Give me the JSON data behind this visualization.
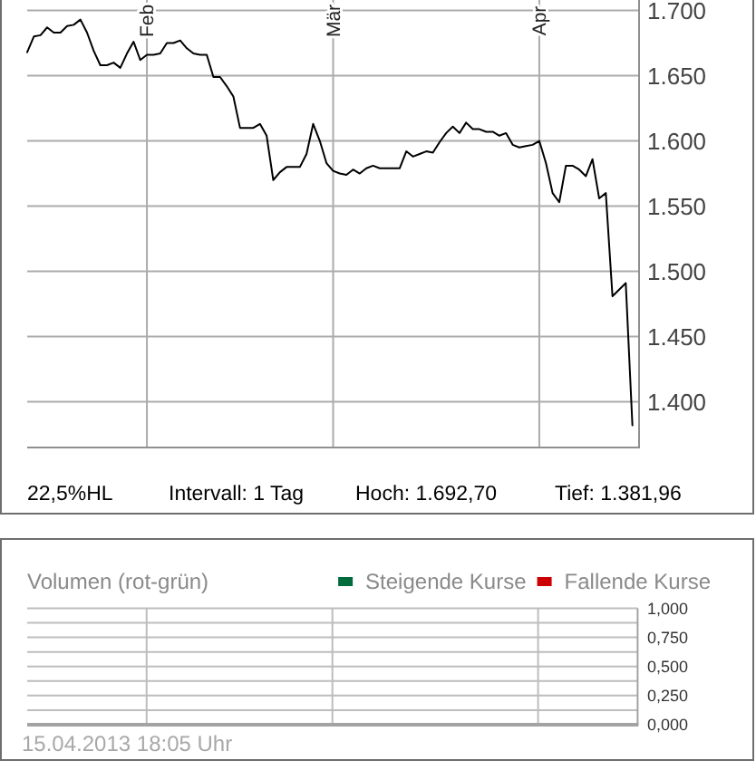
{
  "chart_data": [
    {
      "type": "line",
      "color": "#000000",
      "x": [
        "2013-01-14",
        "2013-01-15",
        "2013-01-16",
        "2013-01-17",
        "2013-01-18",
        "2013-01-19",
        "2013-01-20",
        "2013-01-21",
        "2013-01-22",
        "2013-01-23",
        "2013-01-24",
        "2013-01-25",
        "2013-01-26",
        "2013-01-27",
        "2013-01-28",
        "2013-01-29",
        "2013-01-30",
        "2013-01-31",
        "2013-02-01",
        "2013-02-02",
        "2013-02-03",
        "2013-02-04",
        "2013-02-05",
        "2013-02-06",
        "2013-02-07",
        "2013-02-08",
        "2013-02-09",
        "2013-02-10",
        "2013-02-11",
        "2013-02-12",
        "2013-02-13",
        "2013-02-14",
        "2013-02-15",
        "2013-02-16",
        "2013-02-17",
        "2013-02-18",
        "2013-02-19",
        "2013-02-20",
        "2013-02-21",
        "2013-02-22",
        "2013-02-23",
        "2013-02-24",
        "2013-02-25",
        "2013-02-26",
        "2013-02-27",
        "2013-02-28",
        "2013-03-01",
        "2013-03-02",
        "2013-03-03",
        "2013-03-04",
        "2013-03-05",
        "2013-03-06",
        "2013-03-07",
        "2013-03-08",
        "2013-03-09",
        "2013-03-10",
        "2013-03-11",
        "2013-03-12",
        "2013-03-13",
        "2013-03-14",
        "2013-03-15",
        "2013-03-16",
        "2013-03-17",
        "2013-03-18",
        "2013-03-19",
        "2013-03-20",
        "2013-03-21",
        "2013-03-22",
        "2013-03-23",
        "2013-03-24",
        "2013-03-25",
        "2013-03-26",
        "2013-03-27",
        "2013-03-28",
        "2013-03-29",
        "2013-03-30",
        "2013-03-31",
        "2013-04-01",
        "2013-04-02",
        "2013-04-03",
        "2013-04-04",
        "2013-04-05",
        "2013-04-06",
        "2013-04-07",
        "2013-04-08",
        "2013-04-09",
        "2013-04-10",
        "2013-04-11",
        "2013-04-12",
        "2013-04-13",
        "2013-04-14",
        "2013-04-15"
      ],
      "values": [
        1668,
        1680,
        1681,
        1687,
        1683,
        1683,
        1688,
        1689,
        1693,
        1683,
        1669,
        1658,
        1658,
        1660,
        1656,
        1667,
        1676,
        1662,
        1666,
        1666,
        1667,
        1675,
        1675,
        1677,
        1671,
        1667,
        1666,
        1666,
        1649,
        1649,
        1642,
        1634,
        1610,
        1610,
        1610,
        1613,
        1604,
        1570,
        1576,
        1580,
        1580,
        1580,
        1590,
        1613,
        1600,
        1583,
        1577,
        1575,
        1574,
        1578,
        1575,
        1579,
        1581,
        1579,
        1579,
        1579,
        1579,
        1592,
        1588,
        1590,
        1592,
        1591,
        1599,
        1606,
        1611,
        1606,
        1614,
        1609,
        1609,
        1607,
        1607,
        1604,
        1606,
        1597,
        1595,
        1596,
        1597,
        1600,
        1583,
        1560,
        1553,
        1581,
        1581,
        1578,
        1573,
        1586,
        1556,
        1560,
        1481,
        1486,
        1491,
        1382
      ],
      "xlim": [
        "2013-01-14",
        "2013-04-16"
      ],
      "ylim": [
        1365,
        1708
      ],
      "xticks": [
        {
          "value": "2013-02-01",
          "label": "Feb"
        },
        {
          "value": "2013-03-01",
          "label": "Mär"
        },
        {
          "value": "2013-04-01",
          "label": "Apr"
        }
      ],
      "yticks": [
        {
          "value": 1400,
          "label": "1.400"
        },
        {
          "value": 1450,
          "label": "1.450"
        },
        {
          "value": 1500,
          "label": "1.500"
        },
        {
          "value": 1550,
          "label": "1.550"
        },
        {
          "value": 1600,
          "label": "1.600"
        },
        {
          "value": 1650,
          "label": "1.650"
        },
        {
          "value": 1700,
          "label": "1.700"
        }
      ],
      "grid": true,
      "annotations": [
        "22,5%HL",
        "Intervall: 1 Tag",
        "Hoch: 1.692,70",
        "Tief: 1.381,96"
      ]
    },
    {
      "type": "bar",
      "title": "Volumen (rot-grün)",
      "series": [
        {
          "name": "Steigende Kurse",
          "color": "#006b3c"
        },
        {
          "name": "Fallende Kurse",
          "color": "#cc0000"
        }
      ],
      "ylim": [
        0,
        1
      ],
      "yticks": [
        {
          "value": 0,
          "label": "0,000"
        },
        {
          "value": 0.125,
          "label": null
        },
        {
          "value": 0.25,
          "label": "0,250"
        },
        {
          "value": 0.375,
          "label": null
        },
        {
          "value": 0.5,
          "label": "0,500"
        },
        {
          "value": 0.625,
          "label": null
        },
        {
          "value": 0.75,
          "label": "0,750"
        },
        {
          "value": 0.875,
          "label": null
        },
        {
          "value": 1,
          "label": "1,000"
        }
      ],
      "grid": true,
      "legend": "top right",
      "tick_labels": "y",
      "annotations": [
        "15.04.2013 18:05 Uhr"
      ]
    }
  ]
}
